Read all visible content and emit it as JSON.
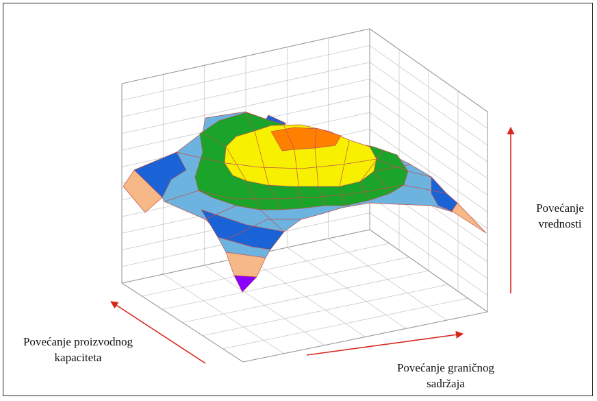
{
  "chart_data": {
    "type": "surface",
    "axes": {
      "x_label": "Povećanje proizvodnog\nkapaciteta",
      "y_label": "Povećanje graničnog\nsadržaja",
      "z_label": "Povećanje\nvrednosti"
    },
    "grid": true,
    "colors": {
      "grid": "#c8c8c8",
      "box": "#9a9a9a",
      "mesh": "#c0504d",
      "arrow": "#d9261c",
      "bands": [
        "#8a00ff",
        "#f6b887",
        "#1a63d6",
        "#6db3e0",
        "#1aa52a",
        "#f7f000",
        "#ff7f00"
      ]
    }
  }
}
